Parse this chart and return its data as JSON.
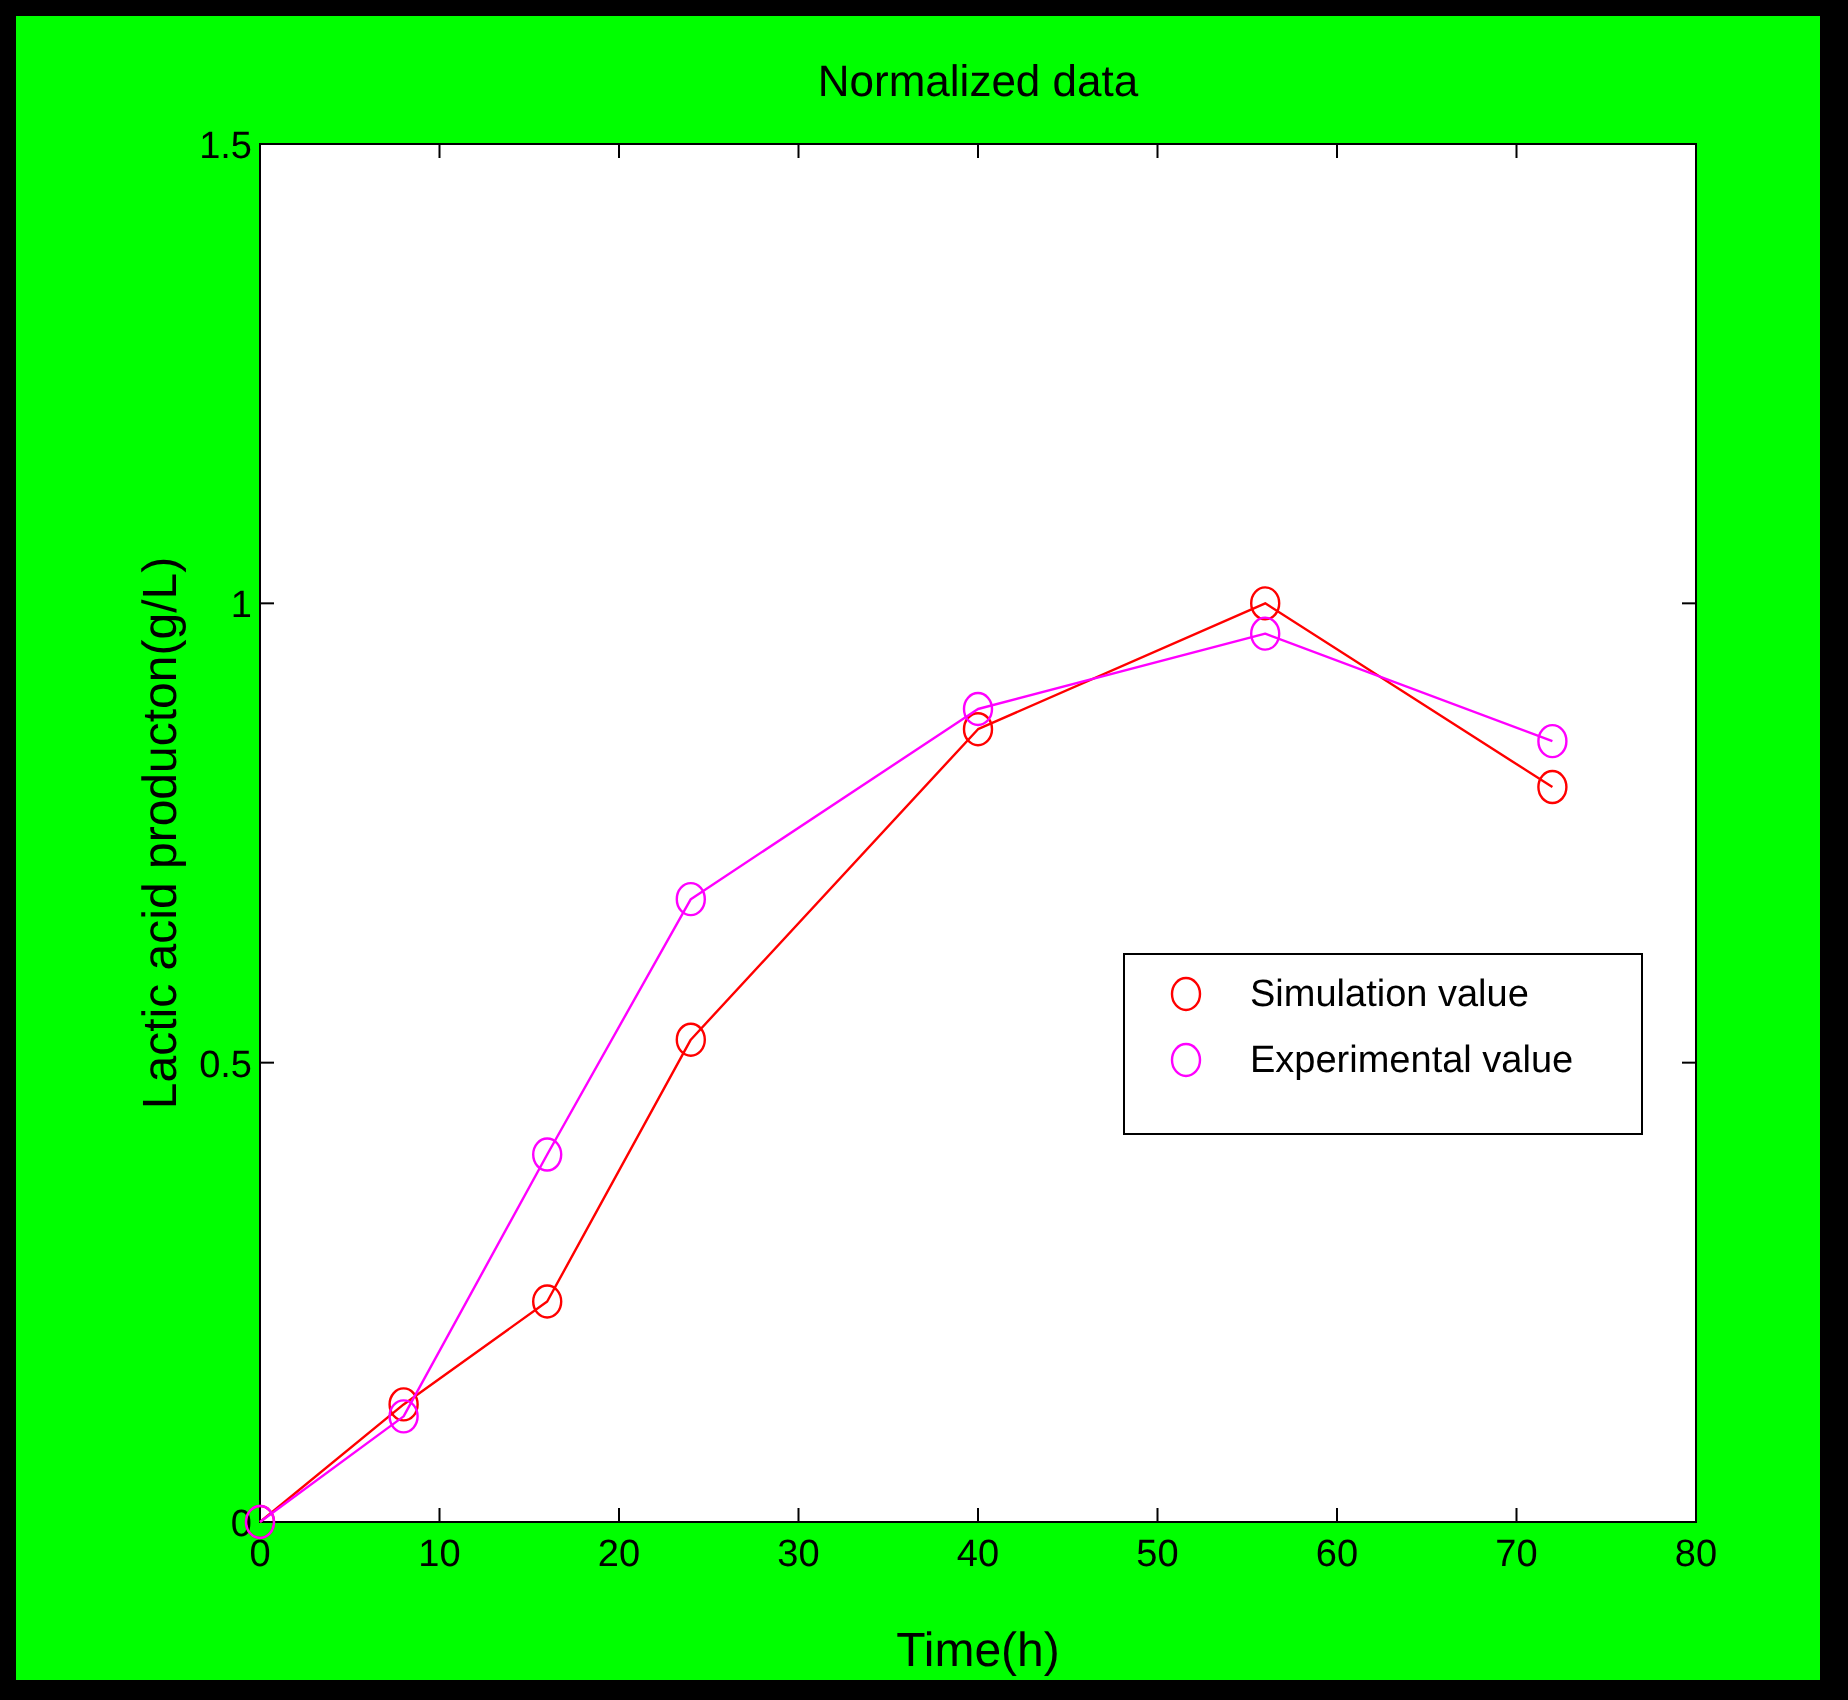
{
  "chart_data": {
    "type": "line",
    "title": "Normalized data",
    "xlabel": "Time(h)",
    "ylabel": "Lactic acid producton(g/L)",
    "series": [
      {
        "name": "Simulation value",
        "color": "#ff0000",
        "x": [
          0,
          8,
          16,
          24,
          40,
          56,
          72
        ],
        "values": [
          0,
          0.128,
          0.24,
          0.525,
          0.863,
          1.0,
          0.8
        ]
      },
      {
        "name": "Experimental value",
        "color": "#ff00ff",
        "x": [
          0,
          8,
          16,
          24,
          40,
          56,
          72
        ],
        "values": [
          0,
          0.115,
          0.4,
          0.678,
          0.885,
          0.967,
          0.85
        ]
      }
    ],
    "xlim": [
      0,
      80
    ],
    "xticks": [
      0,
      10,
      20,
      30,
      40,
      50,
      60,
      70,
      80
    ],
    "ylim": [
      0,
      1.5
    ],
    "yticks": [
      0,
      0.5,
      1,
      1.5
    ],
    "grid": false,
    "legend": "right",
    "marker": "circle",
    "line_style": "solid"
  }
}
